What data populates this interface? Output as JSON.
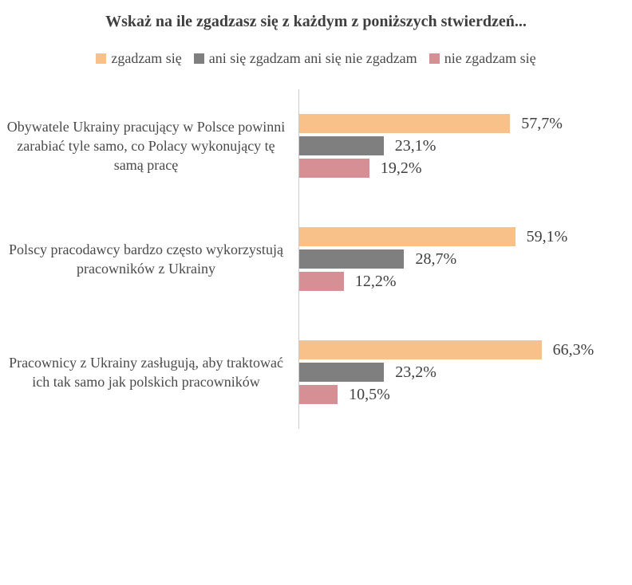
{
  "chart_data": {
    "type": "bar",
    "orientation": "horizontal",
    "title": "Wskaż na ile zgadzasz się z każdym z poniższych stwierdzeń...",
    "categories": [
      "Obywatele Ukrainy pracujący w Polsce powinni zarabiać tyle samo, co Polacy wykonujący tę samą pracę",
      "Polscy pracodawcy bardzo często wykorzystują pracowników z Ukrainy",
      "Pracownicy z Ukrainy zasługują, aby traktować ich tak samo jak polskich pracowników"
    ],
    "series": [
      {
        "name": "zgadzam się",
        "color": "#F9C18A",
        "values": [
          57.7,
          59.1,
          66.3
        ]
      },
      {
        "name": "ani się zgadzam ani się nie zgadzam",
        "color": "#7F7F7F",
        "values": [
          23.1,
          28.7,
          23.2
        ]
      },
      {
        "name": "nie zgadzam się",
        "color": "#D68F95",
        "values": [
          19.2,
          12.2,
          10.5
        ]
      }
    ],
    "value_labels": [
      [
        "57,7%",
        "23,1%",
        "19,2%"
      ],
      [
        "59,1%",
        "28,7%",
        "12,2%"
      ],
      [
        "66,3%",
        "23,2%",
        "10,5%"
      ]
    ],
    "xlim": [
      0,
      87
    ],
    "legend_position": "top",
    "grid": false,
    "axis_line_color": "#CBCBCB",
    "background_color": "#FFFFFF"
  }
}
